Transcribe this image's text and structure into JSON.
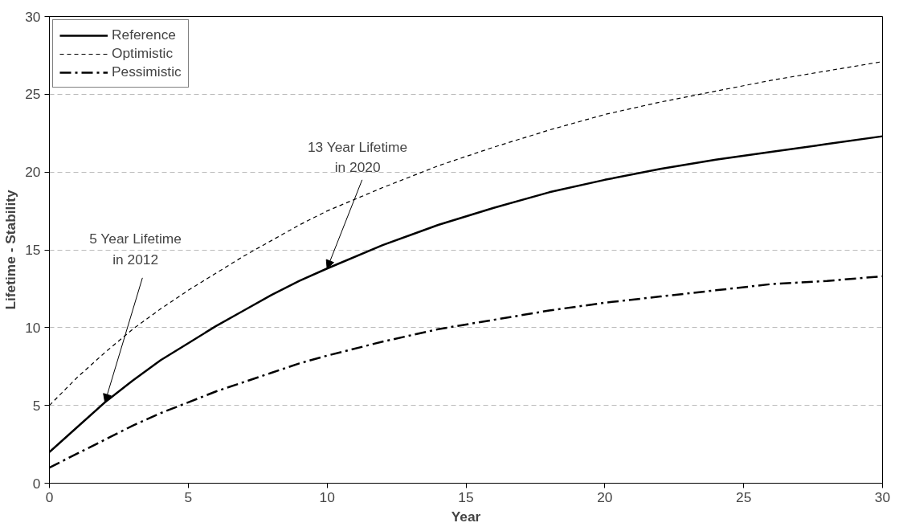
{
  "chart_data": {
    "type": "line",
    "xlabel": "Year",
    "ylabel": "Lifetime - Stability",
    "xlim": [
      0,
      30
    ],
    "ylim": [
      0,
      30
    ],
    "xticks": [
      0,
      5,
      10,
      15,
      20,
      25,
      30
    ],
    "yticks": [
      0,
      5,
      10,
      15,
      20,
      25,
      30
    ],
    "grid": "y",
    "legend": "top left",
    "marker": "none",
    "x": [
      0,
      1,
      2,
      3,
      4,
      5,
      6,
      7,
      8,
      9,
      10,
      12,
      14,
      16,
      18,
      20,
      22,
      24,
      26,
      28,
      30
    ],
    "series": [
      {
        "name": "Reference",
        "color": "#000000",
        "line_style": "solid",
        "values": [
          2.0,
          3.6,
          5.2,
          6.6,
          7.9,
          9.0,
          10.1,
          11.1,
          12.1,
          13.0,
          13.8,
          15.3,
          16.6,
          17.7,
          18.7,
          19.5,
          20.2,
          20.8,
          21.3,
          21.8,
          22.3
        ]
      },
      {
        "name": "Optimistic",
        "color": "#000000",
        "line_style": "dashed",
        "values": [
          5.0,
          6.8,
          8.4,
          9.9,
          11.2,
          12.4,
          13.5,
          14.6,
          15.6,
          16.6,
          17.5,
          19.0,
          20.4,
          21.6,
          22.7,
          23.7,
          24.5,
          25.2,
          25.9,
          26.5,
          27.1
        ]
      },
      {
        "name": "Pessimistic",
        "color": "#000000",
        "line_style": "dashdot",
        "values": [
          1.0,
          1.9,
          2.8,
          3.7,
          4.5,
          5.2,
          5.9,
          6.5,
          7.1,
          7.7,
          8.2,
          9.1,
          9.9,
          10.5,
          11.1,
          11.6,
          12.0,
          12.4,
          12.8,
          13.0,
          13.3
        ]
      }
    ],
    "annotations": [
      {
        "text": "5 Year Lifetime\nin 2012",
        "x": 2,
        "y": 5.2
      },
      {
        "text": "13 Year Lifetime\nin 2020",
        "x": 10,
        "y": 13.8
      }
    ]
  }
}
